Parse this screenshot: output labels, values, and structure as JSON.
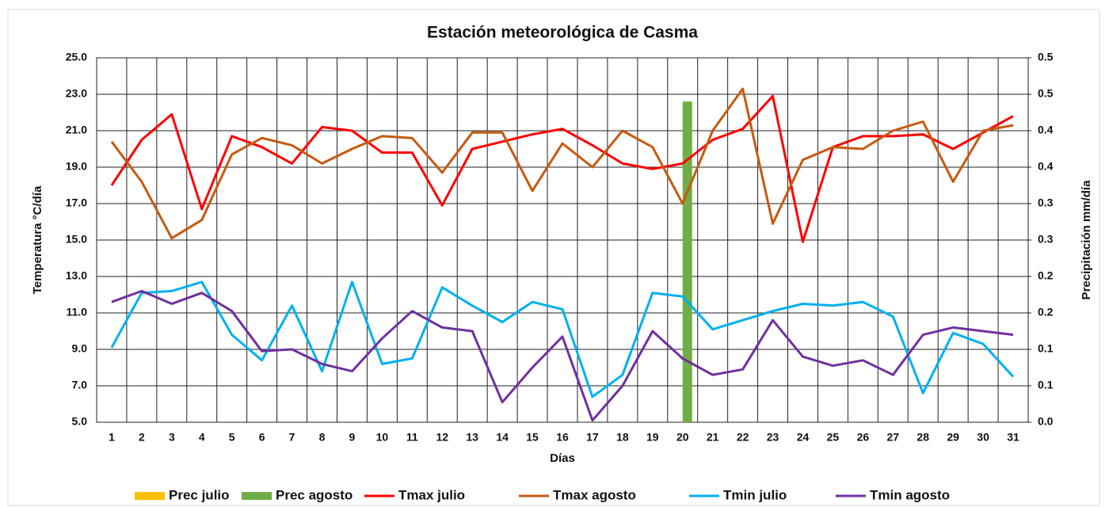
{
  "chart_data": {
    "type": "line",
    "title": "Estación meteorológica de Casma",
    "x_label": "Días",
    "y_label": "Temperatura °C/día",
    "y2_label": "Precipitación mm/día",
    "categories": [
      "1",
      "2",
      "3",
      "4",
      "5",
      "6",
      "7",
      "8",
      "9",
      "10",
      "11",
      "12",
      "13",
      "14",
      "15",
      "16",
      "17",
      "18",
      "19",
      "20",
      "21",
      "22",
      "23",
      "24",
      "25",
      "26",
      "27",
      "28",
      "29",
      "30",
      "31"
    ],
    "ylim": [
      5,
      25
    ],
    "yticks": [
      {
        "value": 5,
        "label": "5.0"
      },
      {
        "value": 7,
        "label": "7.0"
      },
      {
        "value": 9,
        "label": "9.0"
      },
      {
        "value": 11,
        "label": "11.0"
      },
      {
        "value": 13,
        "label": "13.0"
      },
      {
        "value": 15,
        "label": "15.0"
      },
      {
        "value": 17,
        "label": "17.0"
      },
      {
        "value": 19,
        "label": "19.0"
      },
      {
        "value": 21,
        "label": "21.0"
      },
      {
        "value": 23,
        "label": "23.0"
      },
      {
        "value": 25,
        "label": "25.0"
      }
    ],
    "y2lim": [
      0,
      0.5
    ],
    "y2ticks": [
      {
        "value": 0,
        "label": "0.0"
      },
      {
        "value": 0.05,
        "label": "0.1"
      },
      {
        "value": 0.1,
        "label": "0.1"
      },
      {
        "value": 0.15,
        "label": "0.2"
      },
      {
        "value": 0.2,
        "label": "0.2"
      },
      {
        "value": 0.25,
        "label": "0.3"
      },
      {
        "value": 0.3,
        "label": "0.3"
      },
      {
        "value": 0.35,
        "label": "0.4"
      },
      {
        "value": 0.4,
        "label": "0.4"
      },
      {
        "value": 0.45,
        "label": "0.5"
      },
      {
        "value": 0.5,
        "label": "0.5"
      }
    ],
    "grid": true,
    "legend": "bottom",
    "series": [
      {
        "name": "Prec julio",
        "type": "bar",
        "axis": "y2",
        "color": "#ffc000",
        "values": [
          0,
          0,
          0,
          0,
          0,
          0,
          0,
          0,
          0,
          0,
          0,
          0,
          0,
          0,
          0,
          0,
          0,
          0,
          0,
          0,
          0,
          0,
          0,
          0,
          0,
          0,
          0,
          0,
          0,
          0,
          0
        ]
      },
      {
        "name": "Prec agosto",
        "type": "bar",
        "axis": "y2",
        "color": "#70ad47",
        "values": [
          0,
          0,
          0,
          0,
          0,
          0,
          0,
          0,
          0,
          0,
          0,
          0,
          0,
          0,
          0,
          0,
          0,
          0,
          0,
          0.44,
          0,
          0,
          0,
          0,
          0,
          0,
          0,
          0,
          0,
          0,
          0
        ]
      },
      {
        "name": "Tmax julio",
        "type": "line",
        "color": "#ff0000",
        "values": [
          18.0,
          20.5,
          21.9,
          16.7,
          20.7,
          20.1,
          19.2,
          21.2,
          21.0,
          19.8,
          19.8,
          16.9,
          20.0,
          20.4,
          20.8,
          21.1,
          20.2,
          19.2,
          18.9,
          19.2,
          20.5,
          21.1,
          22.9,
          14.9,
          20.1,
          20.7,
          20.7,
          20.8,
          20.0,
          20.9,
          21.8
        ]
      },
      {
        "name": "Tmax agosto",
        "type": "line",
        "color": "#c55a11",
        "values": [
          20.4,
          18.2,
          15.1,
          16.1,
          19.7,
          20.6,
          20.2,
          19.2,
          20.0,
          20.7,
          20.6,
          18.7,
          20.9,
          20.9,
          17.7,
          20.3,
          19.0,
          21.0,
          20.1,
          17.0,
          21.0,
          23.3,
          15.9,
          19.4,
          20.1,
          20.0,
          21.0,
          21.5,
          18.2,
          21.0,
          21.3
        ]
      },
      {
        "name": "Tmin julio",
        "type": "line",
        "color": "#00b0f0",
        "values": [
          9.1,
          12.1,
          12.2,
          12.7,
          9.8,
          8.4,
          11.4,
          7.8,
          12.7,
          8.2,
          8.5,
          12.4,
          11.4,
          10.5,
          11.6,
          11.2,
          6.4,
          7.6,
          12.1,
          11.9,
          10.1,
          10.6,
          11.1,
          11.5,
          11.4,
          11.6,
          10.8,
          6.6,
          9.9,
          9.3,
          7.5
        ]
      },
      {
        "name": "Tmin agosto",
        "type": "line",
        "color": "#7030a0",
        "values": [
          11.6,
          12.2,
          11.5,
          12.1,
          11.1,
          8.9,
          9.0,
          8.2,
          7.8,
          9.6,
          11.1,
          10.2,
          10.0,
          6.1,
          8.0,
          9.7,
          5.1,
          7.0,
          10.0,
          8.5,
          7.6,
          7.9,
          10.6,
          8.6,
          8.1,
          8.4,
          7.6,
          9.8,
          10.2,
          10.0,
          9.8
        ]
      }
    ]
  }
}
